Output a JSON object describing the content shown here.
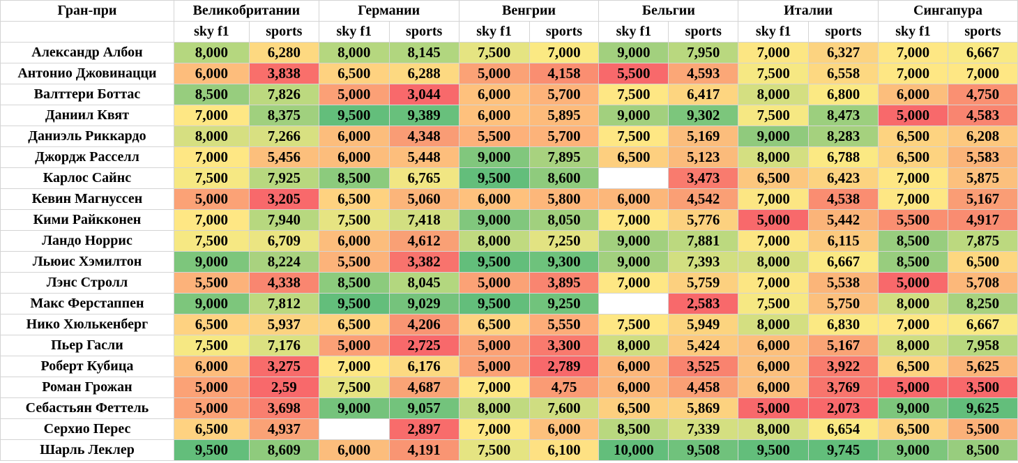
{
  "header": {
    "corner": "Гран-при",
    "grand_prix": [
      "Великобритании",
      "Германии",
      "Венгрии",
      "Бельгии",
      "Италии",
      "Сингапура"
    ],
    "sources": [
      "sky f1",
      "sports"
    ]
  },
  "rows": [
    {
      "driver": "Александр Албон",
      "values": [
        "8,000",
        "6,280",
        "8,000",
        "8,145",
        "7,500",
        "7,000",
        "9,000",
        "7,950",
        "7,000",
        "6,327",
        "7,000",
        "6,667"
      ],
      "colors": [
        "#b5d77f",
        "#fdd981",
        "#b5d77f",
        "#b1d67f",
        "#e5e482",
        "#fbe983",
        "#a2d07e",
        "#b9d87f",
        "#fce683",
        "#fcd380",
        "#fee784",
        "#f9e983"
      ]
    },
    {
      "driver": "Антонио Джовинацци",
      "values": [
        "6,000",
        "3,838",
        "6,500",
        "6,288",
        "5,000",
        "4,158",
        "5,500",
        "4,593",
        "7,500",
        "6,558",
        "7,000",
        "7,000"
      ],
      "colors": [
        "#fdbd7c",
        "#f96f6b",
        "#fed280",
        "#fdd981",
        "#fba276",
        "#fa8e71",
        "#f8696b",
        "#fba777",
        "#f6e883",
        "#fdd881",
        "#fee784",
        "#fee784"
      ]
    },
    {
      "driver": "Валттери Боттас",
      "values": [
        "8,500",
        "7,826",
        "5,000",
        "3,044",
        "6,000",
        "5,700",
        "7,500",
        "6,417",
        "8,000",
        "6,800",
        "6,000",
        "4,750"
      ],
      "colors": [
        "#97cd7e",
        "#bcd97f",
        "#fba076",
        "#f8696b",
        "#fec17d",
        "#fdb37a",
        "#fee784",
        "#fdd580",
        "#d4df81",
        "#fbe983",
        "#fcbe7c",
        "#fa9072"
      ]
    },
    {
      "driver": "Даниил Квят",
      "values": [
        "7,000",
        "8,375",
        "9,500",
        "9,389",
        "6,000",
        "5,895",
        "9,000",
        "9,302",
        "7,500",
        "8,473",
        "5,000",
        "4,583"
      ],
      "colors": [
        "#fee784",
        "#a0d07e",
        "#63be7b",
        "#68c07c",
        "#fec17d",
        "#fdbb7b",
        "#a2d07e",
        "#7cc67c",
        "#f6e883",
        "#9ccf7e",
        "#f8696b",
        "#f98570"
      ]
    },
    {
      "driver": "Даниэль Риккардо",
      "values": [
        "8,000",
        "7,266",
        "6,000",
        "4,348",
        "5,500",
        "5,700",
        "7,500",
        "5,169",
        "9,000",
        "8,283",
        "6,500",
        "6,208"
      ],
      "colors": [
        "#d6df81",
        "#d8e081",
        "#fcbd7c",
        "#f99c75",
        "#fdb17a",
        "#fdb37a",
        "#fee784",
        "#fbbd7c",
        "#90ca7d",
        "#a5d17e",
        "#fdd380",
        "#fdc87e"
      ]
    },
    {
      "driver": "Джордж Расселл",
      "values": [
        "7,000",
        "5,456",
        "6,000",
        "5,448",
        "9,000",
        "7,895",
        "6,500",
        "5,123",
        "8,000",
        "6,788",
        "6,500",
        "5,583"
      ],
      "colors": [
        "#fee784",
        "#fcbf7c",
        "#fcbd7c",
        "#fdbe7c",
        "#81c77d",
        "#a8d27f",
        "#fdcf7f",
        "#fbbb7b",
        "#d4df81",
        "#fbe983",
        "#fdd380",
        "#fbb479"
      ]
    },
    {
      "driver": "Карлос Сайнс",
      "values": [
        "7,500",
        "7,925",
        "8,500",
        "6,765",
        "9,500",
        "8,600",
        "",
        "3,473",
        "6,500",
        "6,423",
        "7,000",
        "5,875"
      ],
      "colors": [
        "#f6e883",
        "#b8d87f",
        "#8ccb7d",
        "#f1e683",
        "#63be7b",
        "#8fcb7d",
        "#ffffff",
        "#f97b6e",
        "#fcc77e",
        "#fcd380",
        "#fee784",
        "#fcc07d"
      ]
    },
    {
      "driver": "Кевин Магнуссен",
      "values": [
        "5,000",
        "3,205",
        "6,500",
        "5,060",
        "6,000",
        "5,800",
        "6,000",
        "4,542",
        "7,000",
        "4,538",
        "7,000",
        "5,167"
      ],
      "colors": [
        "#fba276",
        "#f8696b",
        "#fed280",
        "#fcb57a",
        "#fec17d",
        "#fdb77a",
        "#fcb77a",
        "#fa9f75",
        "#fce683",
        "#fa8d71",
        "#fee784",
        "#fa9d75"
      ]
    },
    {
      "driver": "Кими Райкконен",
      "values": [
        "7,000",
        "7,940",
        "7,500",
        "7,418",
        "9,000",
        "8,050",
        "7,000",
        "5,776",
        "5,000",
        "5,442",
        "5,500",
        "4,917"
      ],
      "colors": [
        "#fee784",
        "#b7d87f",
        "#e6e482",
        "#d2df81",
        "#81c77d",
        "#a1d07e",
        "#fee784",
        "#fcd17f",
        "#f8696b",
        "#fbb479",
        "#fa8f71",
        "#f98c71"
      ]
    },
    {
      "driver": "Ландо Норрис",
      "values": [
        "7,500",
        "6,709",
        "6,000",
        "4,612",
        "8,000",
        "7,250",
        "9,000",
        "7,881",
        "7,000",
        "6,115",
        "8,500",
        "7,875"
      ],
      "colors": [
        "#f6e883",
        "#ebe582",
        "#fcbd7c",
        "#f9a075",
        "#c0da80",
        "#e2e382",
        "#a2d07e",
        "#bcd97f",
        "#fce683",
        "#fcca7e",
        "#98cd7e",
        "#bcd97f"
      ]
    },
    {
      "driver": "Льюис Хэмилтон",
      "values": [
        "9,000",
        "8,224",
        "5,500",
        "3,382",
        "9,500",
        "9,300",
        "9,000",
        "7,393",
        "8,000",
        "6,667",
        "8,500",
        "6,500"
      ],
      "colors": [
        "#7dc67c",
        "#a9d27f",
        "#fcb37a",
        "#f8736d",
        "#63be7b",
        "#6ec27c",
        "#a2d07e",
        "#d2df81",
        "#d4df81",
        "#fbe983",
        "#98cd7e",
        "#fdd780"
      ]
    },
    {
      "driver": "Лэнс Стролл",
      "values": [
        "5,500",
        "4,338",
        "8,500",
        "8,045",
        "5,000",
        "3,895",
        "7,000",
        "5,759",
        "7,000",
        "5,538",
        "5,000",
        "5,708"
      ],
      "colors": [
        "#fcb27a",
        "#f98670",
        "#8ccb7d",
        "#b3d77f",
        "#fba276",
        "#f98570",
        "#fee784",
        "#fcd07f",
        "#fce683",
        "#fbb579",
        "#f8696b",
        "#fcb87a"
      ]
    },
    {
      "driver": "Макс Ферстаппен",
      "values": [
        "9,000",
        "7,812",
        "9,500",
        "9,029",
        "9,500",
        "9,250",
        "",
        "2,583",
        "7,500",
        "5,750",
        "8,000",
        "8,250"
      ],
      "colors": [
        "#7dc67c",
        "#bdd97f",
        "#63be7b",
        "#75c37c",
        "#63be7b",
        "#71c37c",
        "#ffffff",
        "#f8696b",
        "#f6e883",
        "#fcc07d",
        "#d0de81",
        "#a8d27f"
      ]
    },
    {
      "driver": "Нико Хюлькенберг",
      "values": [
        "6,500",
        "5,937",
        "6,500",
        "4,206",
        "6,500",
        "5,550",
        "7,500",
        "5,949",
        "8,000",
        "6,830",
        "7,000",
        "6,667"
      ],
      "colors": [
        "#fed281",
        "#fcd380",
        "#fed280",
        "#f99573",
        "#fed381",
        "#fdad79",
        "#fee784",
        "#fcd47f",
        "#d4df81",
        "#fbe983",
        "#fee784",
        "#f9e983"
      ]
    },
    {
      "driver": "Пьер Гасли",
      "values": [
        "7,500",
        "7,176",
        "5,000",
        "2,725",
        "5,000",
        "3,300",
        "8,000",
        "5,424",
        "6,000",
        "5,167",
        "8,000",
        "7,958"
      ],
      "colors": [
        "#f6e883",
        "#dbe181",
        "#fba076",
        "#f8696b",
        "#fba276",
        "#f97a6e",
        "#d0de81",
        "#fcc97e",
        "#fcc07d",
        "#faa476",
        "#d0de81",
        "#b8d87f"
      ]
    },
    {
      "driver": "Роберт Кубица",
      "values": [
        "6,000",
        "3,275",
        "7,000",
        "6,176",
        "5,000",
        "2,789",
        "6,000",
        "3,525",
        "6,000",
        "3,922",
        "6,500",
        "5,625"
      ],
      "colors": [
        "#fdbd7c",
        "#f86c6b",
        "#fee784",
        "#fcd981",
        "#fba276",
        "#f8696b",
        "#fcb77a",
        "#f9836f",
        "#fcc07d",
        "#f97c6e",
        "#fdd380",
        "#fbb579"
      ]
    },
    {
      "driver": "Роман Грожан",
      "values": [
        "5,000",
        "2,59",
        "7,500",
        "4,687",
        "7,000",
        "4,75",
        "6,000",
        "4,458",
        "6,000",
        "3,769",
        "5,000",
        "3,500"
      ],
      "colors": [
        "#fba276",
        "#f8696b",
        "#e6e482",
        "#f9a476",
        "#fee784",
        "#fa9b74",
        "#fcb77a",
        "#faa075",
        "#fcc07d",
        "#f8756d",
        "#f8696b",
        "#f8696b"
      ]
    },
    {
      "driver": "Себастьян Феттель",
      "values": [
        "5,000",
        "3,698",
        "9,000",
        "9,057",
        "8,000",
        "7,600",
        "6,500",
        "5,869",
        "5,000",
        "2,073",
        "9,000",
        "9,625"
      ],
      "colors": [
        "#fba276",
        "#f97f6f",
        "#75c37c",
        "#73c37c",
        "#c0da80",
        "#cfdd81",
        "#fdcf7f",
        "#fcd27f",
        "#f8696b",
        "#f8696b",
        "#7dc67c",
        "#63be7b"
      ]
    },
    {
      "driver": "Серхио Перес",
      "values": [
        "6,500",
        "4,937",
        "",
        "2,897",
        "7,000",
        "6,000",
        "8,500",
        "7,339",
        "8,000",
        "6,654",
        "6,500",
        "5,500"
      ],
      "colors": [
        "#fed281",
        "#faa276",
        "#ffffff",
        "#f86c6b",
        "#fee784",
        "#fdc17d",
        "#b9d87f",
        "#d4df81",
        "#d4df81",
        "#fbe983",
        "#fdd380",
        "#fbb179"
      ]
    },
    {
      "driver": "Шарль Леклер",
      "values": [
        "9,500",
        "8,609",
        "6,000",
        "4,191",
        "7,500",
        "6,100",
        "10,000",
        "9,508",
        "9,500",
        "9,745",
        "9,000",
        "8,500"
      ],
      "colors": [
        "#63be7b",
        "#8fcb7d",
        "#fcbd7c",
        "#f99573",
        "#e5e482",
        "#fee183",
        "#63be7b",
        "#70c27c",
        "#63be7b",
        "#63be7b",
        "#7dc67c",
        "#98cd7e"
      ]
    }
  ]
}
